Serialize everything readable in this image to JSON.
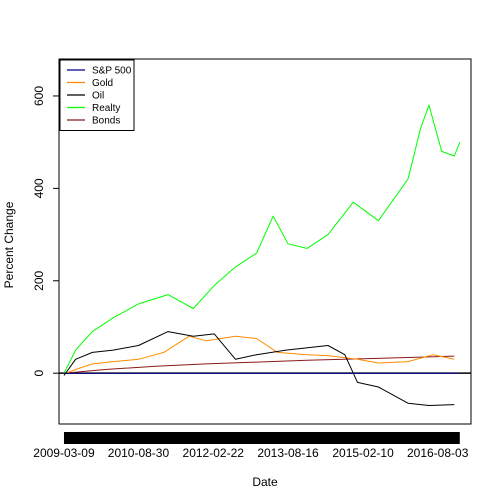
{
  "chart_data": {
    "type": "line",
    "title": "",
    "xlabel": "Date",
    "ylabel": "Percent Change",
    "xlim": [
      "2009-02-01",
      "2017-04-01"
    ],
    "ylim": [
      -110,
      680
    ],
    "x_ticks": [
      "2009-03-09",
      "2010-08-30",
      "2012-02-22",
      "2013-08-16",
      "2015-02-10",
      "2016-08-03"
    ],
    "y_ticks": [
      0,
      200,
      400,
      600
    ],
    "reference_line": 0,
    "legend_position": "top-left",
    "series": [
      {
        "name": "S&P 500",
        "color": "#00008b",
        "points": [
          [
            "2009-03-09",
            0
          ],
          [
            "2017-01-01",
            0
          ]
        ]
      },
      {
        "name": "Gold",
        "color": "#ff8c00",
        "points": [
          [
            "2009-03-09",
            -2
          ],
          [
            "2009-06-01",
            8
          ],
          [
            "2009-10-01",
            20
          ],
          [
            "2010-03-01",
            25
          ],
          [
            "2010-08-30",
            30
          ],
          [
            "2011-03-01",
            45
          ],
          [
            "2011-09-01",
            80
          ],
          [
            "2012-01-01",
            70
          ],
          [
            "2012-08-01",
            80
          ],
          [
            "2013-01-01",
            75
          ],
          [
            "2013-06-01",
            45
          ],
          [
            "2014-01-01",
            40
          ],
          [
            "2014-06-01",
            38
          ],
          [
            "2015-01-01",
            30
          ],
          [
            "2015-06-01",
            22
          ],
          [
            "2016-01-01",
            25
          ],
          [
            "2016-07-01",
            40
          ],
          [
            "2016-12-01",
            30
          ]
        ]
      },
      {
        "name": "Oil",
        "color": "#000000",
        "points": [
          [
            "2009-03-09",
            -5
          ],
          [
            "2009-06-01",
            30
          ],
          [
            "2009-10-01",
            45
          ],
          [
            "2010-03-01",
            50
          ],
          [
            "2010-08-30",
            60
          ],
          [
            "2011-04-01",
            90
          ],
          [
            "2011-10-01",
            80
          ],
          [
            "2012-03-01",
            85
          ],
          [
            "2012-08-01",
            30
          ],
          [
            "2013-01-01",
            40
          ],
          [
            "2013-08-01",
            50
          ],
          [
            "2014-06-01",
            60
          ],
          [
            "2014-10-01",
            40
          ],
          [
            "2015-01-01",
            -20
          ],
          [
            "2015-06-01",
            -30
          ],
          [
            "2016-01-01",
            -65
          ],
          [
            "2016-06-01",
            -70
          ],
          [
            "2016-12-01",
            -68
          ]
        ]
      },
      {
        "name": "Realty",
        "color": "#00ff00",
        "points": [
          [
            "2009-03-09",
            0
          ],
          [
            "2009-06-01",
            50
          ],
          [
            "2009-10-01",
            90
          ],
          [
            "2010-03-01",
            120
          ],
          [
            "2010-08-30",
            150
          ],
          [
            "2011-04-01",
            170
          ],
          [
            "2011-10-01",
            140
          ],
          [
            "2012-03-01",
            190
          ],
          [
            "2012-08-01",
            230
          ],
          [
            "2013-01-01",
            260
          ],
          [
            "2013-05-01",
            340
          ],
          [
            "2013-08-16",
            280
          ],
          [
            "2014-01-01",
            270
          ],
          [
            "2014-06-01",
            300
          ],
          [
            "2014-12-01",
            370
          ],
          [
            "2015-06-01",
            330
          ],
          [
            "2016-01-01",
            420
          ],
          [
            "2016-04-01",
            530
          ],
          [
            "2016-06-01",
            580
          ],
          [
            "2016-09-01",
            480
          ],
          [
            "2016-12-01",
            470
          ],
          [
            "2017-01-10",
            500
          ]
        ]
      },
      {
        "name": "Bonds",
        "color": "#8b1a1a",
        "points": [
          [
            "2009-03-09",
            0
          ],
          [
            "2010-01-01",
            8
          ],
          [
            "2011-01-01",
            15
          ],
          [
            "2012-01-01",
            20
          ],
          [
            "2013-01-01",
            24
          ],
          [
            "2014-01-01",
            28
          ],
          [
            "2015-01-01",
            31
          ],
          [
            "2016-01-01",
            34
          ],
          [
            "2016-12-01",
            37
          ]
        ]
      }
    ]
  }
}
